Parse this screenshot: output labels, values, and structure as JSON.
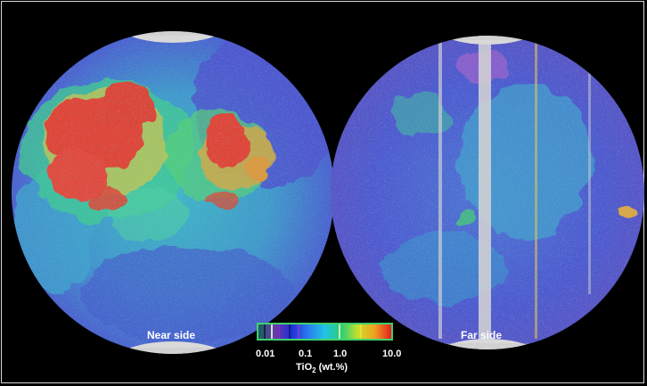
{
  "hemispheres": {
    "near": {
      "label": "Near side"
    },
    "far": {
      "label": "Far side"
    }
  },
  "legend": {
    "quantity": "TiO",
    "subscript": "2",
    "units": "(wt.%)",
    "ticks": [
      "0.01",
      "0.1",
      "1.0",
      "10.0"
    ],
    "scale": "log",
    "colors": [
      "#1a6060",
      "#6a3aa8",
      "#1f2fd6",
      "#2a7cf0",
      "#22c3e6",
      "#26d07a",
      "#c8e02a",
      "#f0a020",
      "#e61e1e"
    ]
  },
  "colors": {
    "background": "#000000",
    "frame": "#d8d8d8",
    "colorbar_border": "#3fd06a",
    "polar_gap": "#d9d9d9",
    "high_ti": "#e63322",
    "mid_ti": "#24c9c2",
    "low_ti": "#3a3fd8"
  }
}
